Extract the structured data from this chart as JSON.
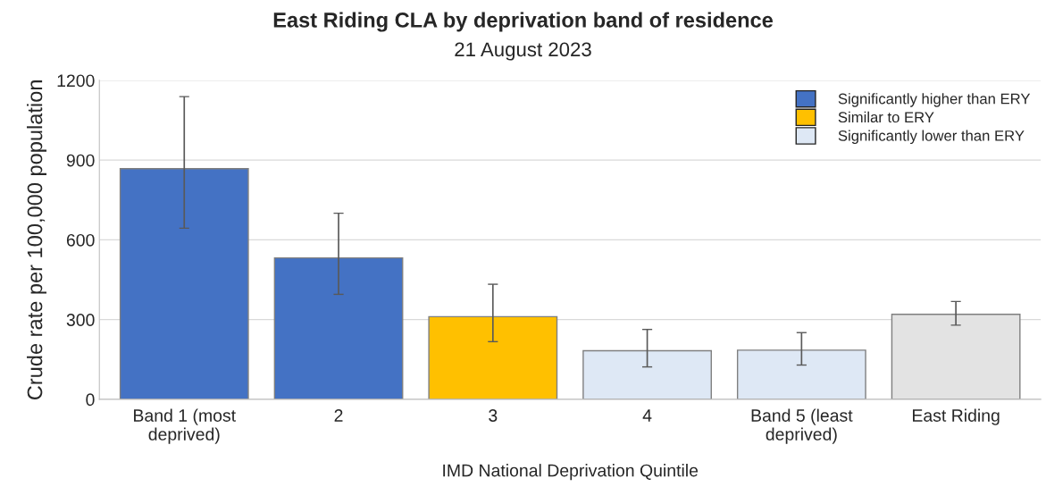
{
  "chart_data": {
    "type": "bar",
    "title": "East Riding CLA by deprivation band of residence",
    "subtitle": "21 August 2023",
    "xlabel": "IMD National Deprivation Quintile",
    "ylabel": "Crude rate per 100,000 population",
    "categories": [
      "Band 1 (most deprived)",
      "2",
      "3",
      "4",
      "Band 5 (least deprived)",
      "East Riding"
    ],
    "series": [
      {
        "name": "Significantly higher than ERY",
        "color": "#4472c4",
        "values": [
          868,
          532,
          null,
          null,
          null,
          null
        ],
        "errors": [
          [
            644,
            1139
          ],
          [
            395,
            700
          ],
          null,
          null,
          null,
          null
        ]
      },
      {
        "name": "Similar to ERY",
        "color": "#ffc000",
        "values": [
          null,
          null,
          311,
          null,
          null,
          null
        ],
        "errors": [
          null,
          null,
          [
            217,
            433
          ],
          null,
          null,
          null
        ]
      },
      {
        "name": "Significantly lower than ERY",
        "color": "#dee8f5",
        "values": [
          null,
          null,
          null,
          183,
          185,
          null
        ],
        "errors": [
          null,
          null,
          null,
          [
            122,
            263
          ],
          [
            129,
            251
          ],
          null
        ]
      },
      {
        "color": "#e3e3e3",
        "values": [
          null,
          null,
          null,
          null,
          null,
          320
        ],
        "errors": [
          null,
          null,
          null,
          null,
          null,
          [
            279,
            368
          ]
        ]
      }
    ],
    "ylim": [
      0,
      1200
    ],
    "yticks": [
      0,
      300,
      600,
      900,
      1200
    ],
    "grid": "y",
    "legend": "top right"
  }
}
